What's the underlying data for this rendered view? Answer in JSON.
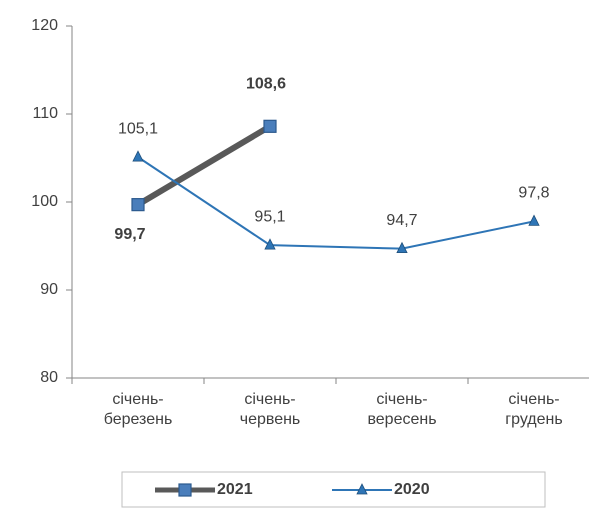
{
  "chart_data": {
    "type": "line",
    "categories": [
      "січень-березень",
      "січень-червень",
      "січень-вересень",
      "січень-грудень"
    ],
    "series": [
      {
        "name": "2021",
        "color": "#595959",
        "marker": "square",
        "marker_color": "#4a7ebb",
        "values": [
          99.7,
          108.6,
          null,
          null
        ],
        "value_labels": [
          "99,7",
          "108,6",
          null,
          null
        ]
      },
      {
        "name": "2020",
        "color": "#2e75b6",
        "marker": "triangle",
        "marker_color": "#2e75b6",
        "values": [
          105.1,
          95.1,
          94.7,
          97.8
        ],
        "value_labels": [
          "105,1",
          "95,1",
          "94,7",
          "97,8"
        ]
      }
    ],
    "ylim": [
      80,
      120
    ],
    "yticks": [
      80,
      90,
      100,
      110,
      120
    ],
    "grid": false,
    "legend": "bottom"
  }
}
